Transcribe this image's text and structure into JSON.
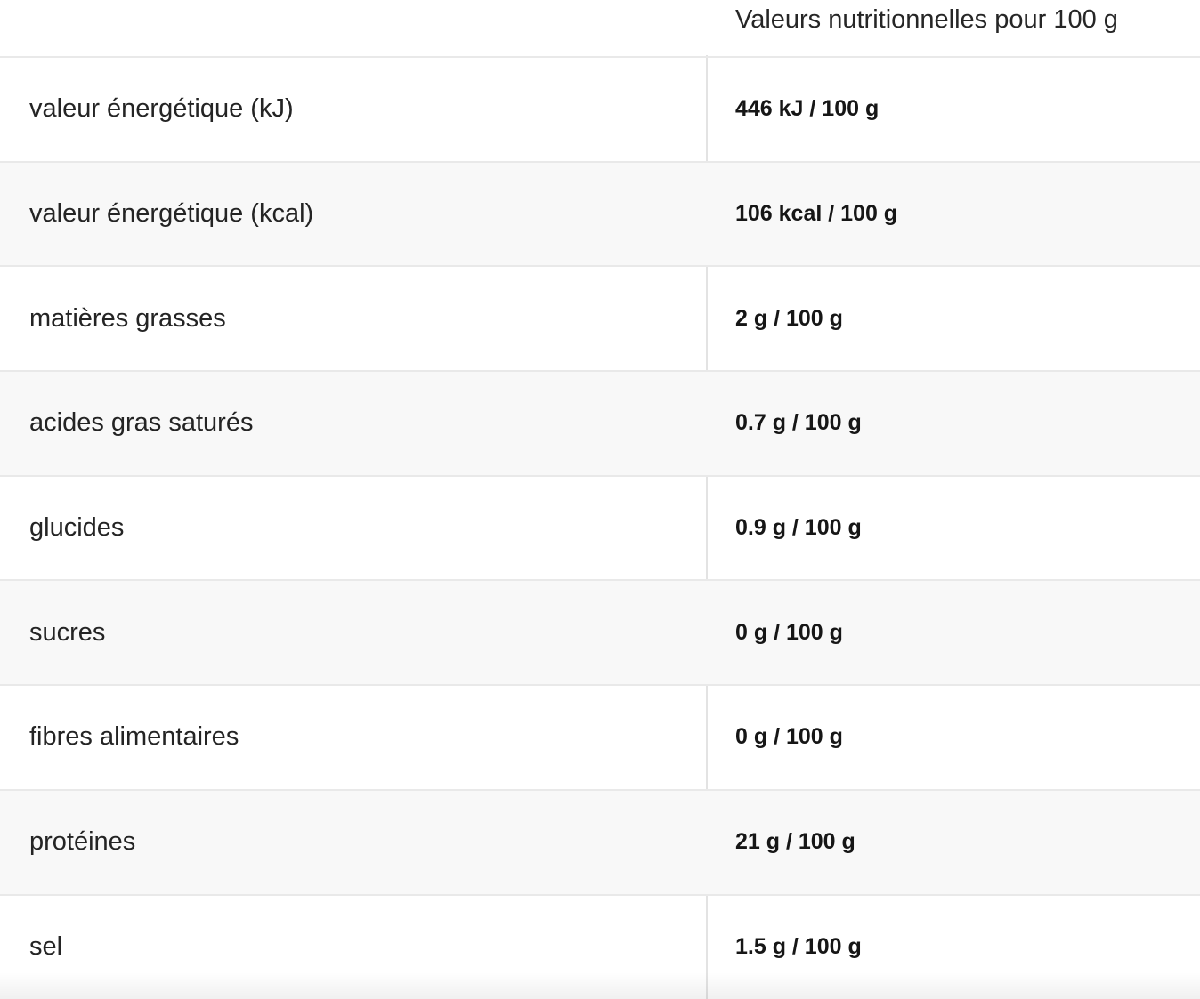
{
  "table": {
    "header": {
      "value_column_title": "Valeurs nutritionnelles pour 100 g"
    },
    "rows": [
      {
        "label": "valeur énergétique (kJ)",
        "value": "446 kJ / 100 g"
      },
      {
        "label": "valeur énergétique (kcal)",
        "value": "106 kcal / 100 g"
      },
      {
        "label": "matières grasses",
        "value": "2 g / 100 g"
      },
      {
        "label": "acides gras saturés",
        "value": "0.7 g / 100 g"
      },
      {
        "label": "glucides",
        "value": "0.9 g / 100 g"
      },
      {
        "label": "sucres",
        "value": "0 g / 100 g"
      },
      {
        "label": "fibres alimentaires",
        "value": "0 g / 100 g"
      },
      {
        "label": "protéines",
        "value": "21 g / 100 g"
      },
      {
        "label": "sel",
        "value": "1.5 g / 100 g"
      }
    ]
  },
  "colors": {
    "row_alt_background": "#f8f8f8",
    "row_border": "#e9e9e9",
    "column_divider": "#e3e3e3",
    "label_text": "#242424",
    "value_text": "#161616"
  }
}
